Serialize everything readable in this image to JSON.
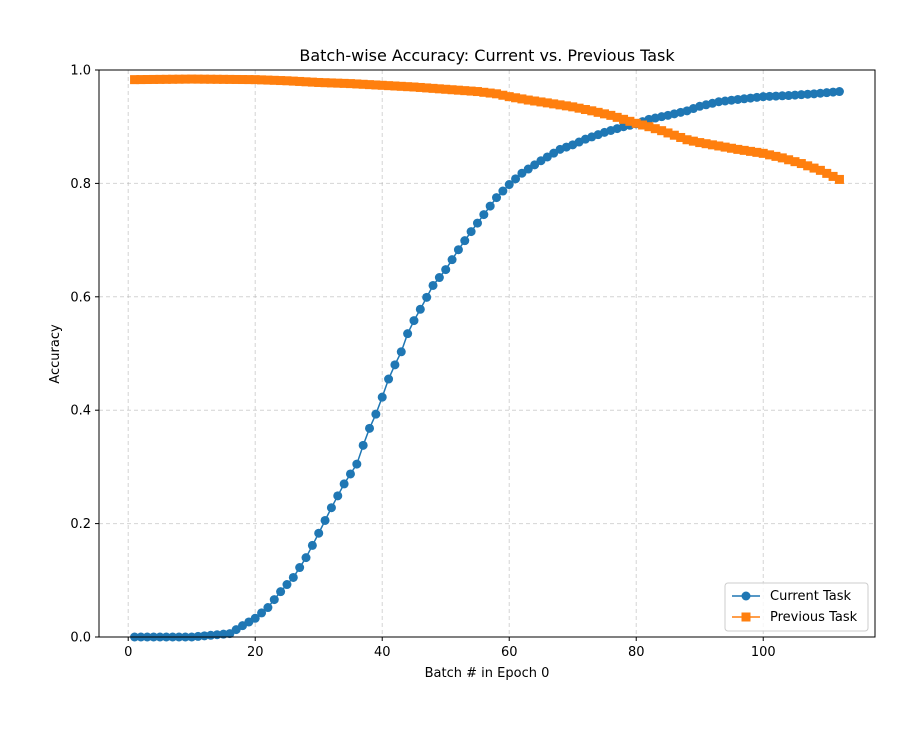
{
  "chart_data": {
    "type": "line",
    "title": "Batch-wise Accuracy: Current vs. Previous Task",
    "xlabel": "Batch # in Epoch 0",
    "ylabel": "Accuracy",
    "xlim": [
      -4.6,
      117.6
    ],
    "ylim": [
      0,
      1.0
    ],
    "xticks": [
      0,
      20,
      40,
      60,
      80,
      100
    ],
    "yticks": [
      0.0,
      0.2,
      0.4,
      0.6,
      0.8,
      1.0
    ],
    "xtick_labels": [
      "0",
      "20",
      "40",
      "60",
      "80",
      "100"
    ],
    "ytick_labels": [
      "0.0",
      "0.2",
      "0.4",
      "0.6",
      "0.8",
      "1.0"
    ],
    "grid": true,
    "legend_position": "lower-right",
    "x_range": [
      1,
      112
    ],
    "series": [
      {
        "name": "Current Task",
        "color": "#1f77b4",
        "marker": "circle",
        "anchors": [
          [
            1,
            0.0
          ],
          [
            10,
            0.0
          ],
          [
            14,
            0.004
          ],
          [
            16,
            0.006
          ],
          [
            18,
            0.02
          ],
          [
            20,
            0.033
          ],
          [
            22,
            0.052
          ],
          [
            24,
            0.08
          ],
          [
            26,
            0.105
          ],
          [
            28,
            0.14
          ],
          [
            30,
            0.183
          ],
          [
            32,
            0.228
          ],
          [
            34,
            0.27
          ],
          [
            36,
            0.305
          ],
          [
            37,
            0.338
          ],
          [
            38,
            0.368
          ],
          [
            39,
            0.393
          ],
          [
            40,
            0.423
          ],
          [
            41,
            0.455
          ],
          [
            42,
            0.48
          ],
          [
            43,
            0.503
          ],
          [
            44,
            0.535
          ],
          [
            45,
            0.558
          ],
          [
            46,
            0.578
          ],
          [
            48,
            0.62
          ],
          [
            50,
            0.648
          ],
          [
            52,
            0.683
          ],
          [
            54,
            0.715
          ],
          [
            56,
            0.745
          ],
          [
            58,
            0.775
          ],
          [
            60,
            0.798
          ],
          [
            62,
            0.818
          ],
          [
            65,
            0.84
          ],
          [
            68,
            0.86
          ],
          [
            70,
            0.868
          ],
          [
            72,
            0.878
          ],
          [
            75,
            0.89
          ],
          [
            78,
            0.9
          ],
          [
            80,
            0.905
          ],
          [
            82,
            0.913
          ],
          [
            85,
            0.92
          ],
          [
            88,
            0.928
          ],
          [
            90,
            0.936
          ],
          [
            93,
            0.944
          ],
          [
            96,
            0.948
          ],
          [
            100,
            0.953
          ],
          [
            104,
            0.955
          ],
          [
            108,
            0.958
          ],
          [
            112,
            0.962
          ]
        ]
      },
      {
        "name": "Previous Task",
        "color": "#ff7f0e",
        "marker": "square",
        "anchors": [
          [
            1,
            0.983
          ],
          [
            10,
            0.984
          ],
          [
            20,
            0.983
          ],
          [
            25,
            0.981
          ],
          [
            30,
            0.978
          ],
          [
            35,
            0.976
          ],
          [
            40,
            0.973
          ],
          [
            45,
            0.97
          ],
          [
            50,
            0.966
          ],
          [
            55,
            0.962
          ],
          [
            58,
            0.958
          ],
          [
            60,
            0.953
          ],
          [
            63,
            0.947
          ],
          [
            66,
            0.942
          ],
          [
            70,
            0.935
          ],
          [
            73,
            0.928
          ],
          [
            76,
            0.92
          ],
          [
            78,
            0.913
          ],
          [
            80,
            0.906
          ],
          [
            82,
            0.9
          ],
          [
            84,
            0.893
          ],
          [
            86,
            0.885
          ],
          [
            88,
            0.877
          ],
          [
            90,
            0.872
          ],
          [
            93,
            0.866
          ],
          [
            96,
            0.86
          ],
          [
            100,
            0.853
          ],
          [
            103,
            0.845
          ],
          [
            106,
            0.835
          ],
          [
            109,
            0.823
          ],
          [
            112,
            0.807
          ]
        ]
      }
    ]
  }
}
